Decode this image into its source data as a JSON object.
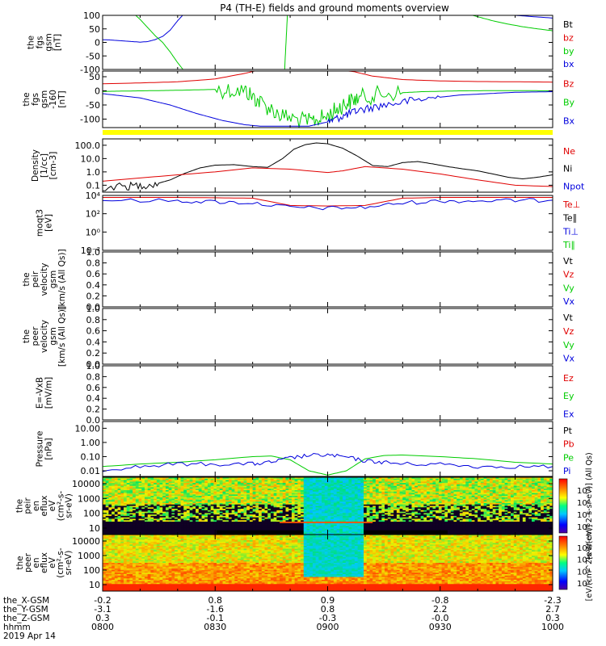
{
  "title": "P4 (TH-E) fields and ground moments overview",
  "chart_data": [
    {
      "type": "line",
      "ylabel": [
        "the",
        "fgs",
        "gsm",
        "[nT]"
      ],
      "ylim": [
        -100,
        100
      ],
      "yticks": [
        "100",
        "50",
        "0",
        "-50",
        "-100"
      ],
      "legend": [
        "Bt",
        "bz",
        "by",
        "bx"
      ],
      "legend_colors": [
        "#000000",
        "#e00000",
        "#00cc00",
        "#0000dd"
      ],
      "series": [
        {
          "color": "#0000dd",
          "x": [
            0,
            2,
            5,
            8,
            10,
            12,
            14,
            16,
            18,
            20,
            22
          ],
          "y": [
            10,
            9,
            6,
            3,
            1,
            3,
            10,
            22,
            45,
            80,
            110
          ]
        },
        {
          "color": "#00cc00",
          "x": [
            8,
            10,
            12,
            14,
            16,
            18,
            20,
            22
          ],
          "y": [
            110,
            85,
            55,
            25,
            0,
            -35,
            -75,
            -110
          ]
        },
        {
          "color": "#00cc00",
          "x": [
            48.5,
            48.9,
            49.3
          ],
          "y": [
            -110,
            0,
            110
          ]
        },
        {
          "color": "#00cc00",
          "x": [
            96,
            100,
            104,
            108,
            112,
            116,
            120
          ],
          "y": [
            110,
            95,
            80,
            68,
            58,
            50,
            43
          ]
        },
        {
          "color": "#0000dd",
          "x": [
            100,
            105,
            110,
            115,
            120
          ],
          "y": [
            110,
            105,
            100,
            95,
            90
          ]
        }
      ]
    },
    {
      "type": "line",
      "ylabel": [
        "the",
        "fgs",
        "gsm",
        "-160",
        "[nT]"
      ],
      "ylim": [
        -130,
        70
      ],
      "yticks": [
        "50",
        "0",
        "-50",
        "-100"
      ],
      "legend": [
        "Bz",
        "By",
        "Bx"
      ],
      "legend_colors": [
        "#e00000",
        "#00cc00",
        "#0000dd"
      ],
      "series": [
        {
          "color": "#e00000",
          "x": [
            0,
            10,
            20,
            30,
            38,
            42,
            48,
            55,
            62,
            67,
            72,
            80,
            90,
            100,
            110,
            120
          ],
          "y": [
            25,
            28,
            32,
            42,
            62,
            75,
            75,
            75,
            75,
            68,
            52,
            40,
            35,
            33,
            32,
            31
          ]
        },
        {
          "color": "#00cc00",
          "x": [
            0,
            10,
            20,
            30,
            38,
            42,
            48,
            55,
            60,
            64,
            68,
            75,
            85,
            95,
            110,
            120
          ],
          "y": [
            -2,
            0,
            2,
            5,
            0,
            -40,
            -90,
            -110,
            -90,
            -50,
            -25,
            -10,
            -3,
            0,
            1,
            0
          ]
        },
        {
          "color": "#0000dd",
          "x": [
            0,
            10,
            18,
            25,
            32,
            38,
            42,
            48,
            55,
            60,
            64,
            68,
            75,
            85,
            95,
            110,
            120
          ],
          "y": [
            -10,
            -25,
            -50,
            -80,
            -105,
            -120,
            -125,
            -125,
            -125,
            -110,
            -90,
            -70,
            -50,
            -30,
            -15,
            -5,
            -3
          ]
        }
      ],
      "band": {
        "color": "#ffff00"
      }
    },
    {
      "type": "line",
      "scale": "log",
      "ylabel": [
        "Density",
        "[1/cc]",
        "[cm-3]"
      ],
      "ylim": [
        0.03,
        300
      ],
      "yticks": [
        "100.0",
        "10.0",
        "1.0",
        "0.1"
      ],
      "legend": [
        "Ne",
        "Ni",
        "Npot"
      ],
      "legend_colors": [
        "#e00000",
        "#000000",
        "#0000dd"
      ],
      "series": [
        {
          "color": "#000000",
          "x": [
            0,
            6,
            10,
            14,
            18,
            22,
            26,
            30,
            35,
            40,
            44,
            48,
            51,
            54,
            57,
            60,
            64,
            68,
            72,
            76,
            80,
            84,
            88,
            92,
            96,
            100,
            104,
            108,
            112,
            116,
            120
          ],
          "y": [
            0.07,
            0.08,
            0.1,
            0.12,
            0.25,
            0.8,
            2.0,
            3.2,
            3.5,
            2.5,
            2.2,
            10,
            50,
            110,
            150,
            130,
            60,
            15,
            3,
            2.5,
            5,
            6,
            4,
            2.5,
            1.7,
            1.2,
            0.7,
            0.4,
            0.3,
            0.4,
            0.6
          ]
        },
        {
          "color": "#e00000",
          "x": [
            0,
            10,
            20,
            30,
            40,
            50,
            60,
            64,
            70,
            80,
            90,
            100,
            110,
            120
          ],
          "y": [
            0.2,
            0.35,
            0.6,
            1.0,
            2.0,
            1.6,
            0.9,
            1.2,
            2.5,
            1.6,
            0.7,
            0.25,
            0.1,
            0.08
          ]
        }
      ]
    },
    {
      "type": "line",
      "scale": "log",
      "ylabel": [
        "moqt3",
        "[eV]"
      ],
      "ylim": [
        0.01,
        10000
      ],
      "yticks": [
        "10⁴",
        "10²",
        "10⁰",
        "10⁻²"
      ],
      "legend": [
        "Te⊥",
        "Te∥",
        "Ti⊥",
        "Ti∥"
      ],
      "legend_colors": [
        "#e00000",
        "#000000",
        "#0000dd",
        "#00cc00"
      ],
      "series": [
        {
          "color": "#e00000",
          "x": [
            0,
            20,
            30,
            40,
            50,
            60,
            70,
            80,
            90,
            100,
            110,
            120
          ],
          "y": [
            6000,
            6000,
            5500,
            5000,
            800,
            700,
            800,
            5000,
            6000,
            6000,
            6000,
            6000
          ]
        },
        {
          "color": "#0000dd",
          "x": [
            0,
            20,
            30,
            40,
            50,
            60,
            70,
            80,
            90,
            100,
            110,
            120
          ],
          "y": [
            3000,
            2500,
            2000,
            1500,
            500,
            400,
            500,
            1500,
            2500,
            2500,
            2800,
            3000
          ]
        }
      ]
    },
    {
      "type": "line",
      "ylabel": [
        "the",
        "peir",
        "velocity",
        "gsm",
        "[km/s (All Qs)]"
      ],
      "ylim": [
        0,
        1
      ],
      "yticks": [
        "1.0",
        "0.8",
        "0.6",
        "0.4",
        "0.2",
        "0.0"
      ],
      "legend": [
        "Vt",
        "Vz",
        "Vy",
        "Vx"
      ],
      "legend_colors": [
        "#000000",
        "#e00000",
        "#00cc00",
        "#0000dd"
      ],
      "series": []
    },
    {
      "type": "line",
      "ylabel": [
        "the",
        "peer",
        "velocity",
        "gsm",
        "[km/s (All Qs)]"
      ],
      "ylim": [
        0,
        1
      ],
      "yticks": [
        "1.0",
        "0.8",
        "0.6",
        "0.4",
        "0.2",
        "0.0"
      ],
      "legend": [
        "Vt",
        "Vz",
        "Vy",
        "Vx"
      ],
      "legend_colors": [
        "#000000",
        "#e00000",
        "#00cc00",
        "#0000dd"
      ],
      "series": []
    },
    {
      "type": "line",
      "ylabel": [
        "E=-VxB",
        "[mV/m]"
      ],
      "ylim": [
        0,
        1
      ],
      "yticks": [
        "1.0",
        "0.8",
        "0.6",
        "0.4",
        "0.2",
        "0.0"
      ],
      "legend": [
        "Ez",
        "Ey",
        "Ex"
      ],
      "legend_colors": [
        "#e00000",
        "#00cc00",
        "#0000dd"
      ],
      "series": []
    },
    {
      "type": "line",
      "scale": "log",
      "ylabel": [
        "Pressure",
        "[nPa]"
      ],
      "ylim": [
        0.004,
        30
      ],
      "yticks": [
        "10.00",
        "1.00",
        "0.10",
        "0.01"
      ],
      "legend": [
        "Pt",
        "Pb",
        "Pe",
        "Pi"
      ],
      "legend_colors": [
        "#000000",
        "#e00000",
        "#00cc00",
        "#0000dd"
      ],
      "series": [
        {
          "color": "#00cc00",
          "x": [
            0,
            10,
            20,
            30,
            40,
            45,
            50,
            55,
            60,
            65,
            70,
            75,
            80,
            90,
            100,
            110,
            120
          ],
          "y": [
            0.02,
            0.03,
            0.04,
            0.06,
            0.1,
            0.11,
            0.06,
            0.01,
            0.005,
            0.01,
            0.07,
            0.12,
            0.13,
            0.1,
            0.07,
            0.04,
            0.03
          ]
        },
        {
          "color": "#0000dd",
          "x": [
            0,
            10,
            20,
            30,
            40,
            45,
            50,
            55,
            60,
            65,
            70,
            75,
            80,
            90,
            100,
            110,
            120
          ],
          "y": [
            0.012,
            0.02,
            0.03,
            0.03,
            0.03,
            0.04,
            0.08,
            0.12,
            0.13,
            0.09,
            0.05,
            0.04,
            0.03,
            0.03,
            0.02,
            0.02,
            0.02
          ]
        }
      ]
    },
    {
      "type": "heatmap",
      "scale": "log",
      "ylabel": [
        "the",
        "peir",
        "en",
        "eflux",
        "eV",
        "(cm²-s-",
        "sr-eV)"
      ],
      "yticks": [
        "10000",
        "1000",
        "100",
        "10"
      ],
      "colorbar_label": "[eV/(cm^2-s-sr-eV)] (All Qs)",
      "colorbar_ticks": [
        "10⁸",
        "10⁶",
        "10⁴",
        "10²"
      ]
    },
    {
      "type": "heatmap",
      "scale": "log",
      "ylabel": [
        "the",
        "peer",
        "en",
        "eflux",
        "eV",
        "(cm²-s-",
        "sr-eV)"
      ],
      "yticks": [
        "10000",
        "1000",
        "100",
        "10"
      ],
      "colorbar_label": "[eV/(cm^2-s-sr-eV)]",
      "colorbar_ticks": [
        "10⁸",
        "10⁶",
        "10⁴",
        "10²"
      ]
    }
  ],
  "x_axis": {
    "xlim": [
      0,
      120
    ],
    "tick_minutes": [
      0,
      30,
      60,
      90,
      120
    ],
    "rows": [
      {
        "label": "the_X-GSM",
        "values": [
          "-0.2",
          "0.8",
          "0.9",
          "-0.8",
          "-2.3"
        ]
      },
      {
        "label": "the_Y-GSM",
        "values": [
          "-3.1",
          "-1.6",
          "0.8",
          "2.2",
          "2.7"
        ]
      },
      {
        "label": "the_Z-GSM",
        "values": [
          "0.3",
          "-0.1",
          "-0.3",
          "-0.0",
          "0.3"
        ]
      },
      {
        "label": "hhmm",
        "values": [
          "0800",
          "0830",
          "0900",
          "0930",
          "1000"
        ]
      }
    ],
    "date": "2019 Apr 14"
  }
}
